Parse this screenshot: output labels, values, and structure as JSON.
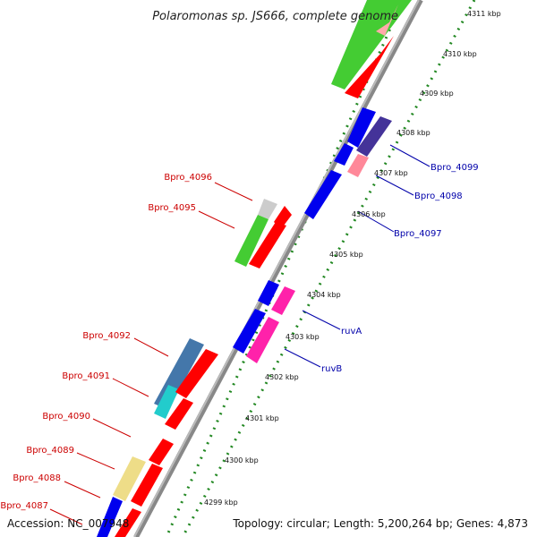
{
  "title": "Polaromonas sp. JS666, complete genome",
  "footer": {
    "accession": "Accession: NC_007948",
    "topology": "Topology: circular; Length: 5,200,264 bp; Genes: 4,873"
  },
  "ticks": [
    "4299 kbp",
    "4300 kbp",
    "4301 kbp",
    "4302 kbp",
    "4303 kbp",
    "4304 kbp",
    "4305 kbp",
    "4306 kbp",
    "4307 kbp",
    "4308 kbp",
    "4309 kbp",
    "4310 kbp",
    "4311 kbp"
  ],
  "gene_labels_left": [
    "Bpro_4096",
    "Bpro_4095",
    "Bpro_4092",
    "Bpro_4091",
    "Bpro_4090",
    "Bpro_4089",
    "Bpro_4088",
    "Bpro_4087"
  ],
  "gene_labels_right": [
    "Bpro_4099",
    "Bpro_4098",
    "Bpro_4097",
    "ruvA",
    "ruvB"
  ],
  "colors": {
    "red": "#ff0000",
    "green": "#44cc33",
    "blue": "#0000ee",
    "navy": "#443399",
    "pink": "#ff88aa",
    "magenta": "#ff22aa",
    "steel": "#4477aa",
    "cyan": "#22cccc",
    "yellow": "#eedd88",
    "gray": "#cccccc",
    "tick_green": "#228822"
  }
}
